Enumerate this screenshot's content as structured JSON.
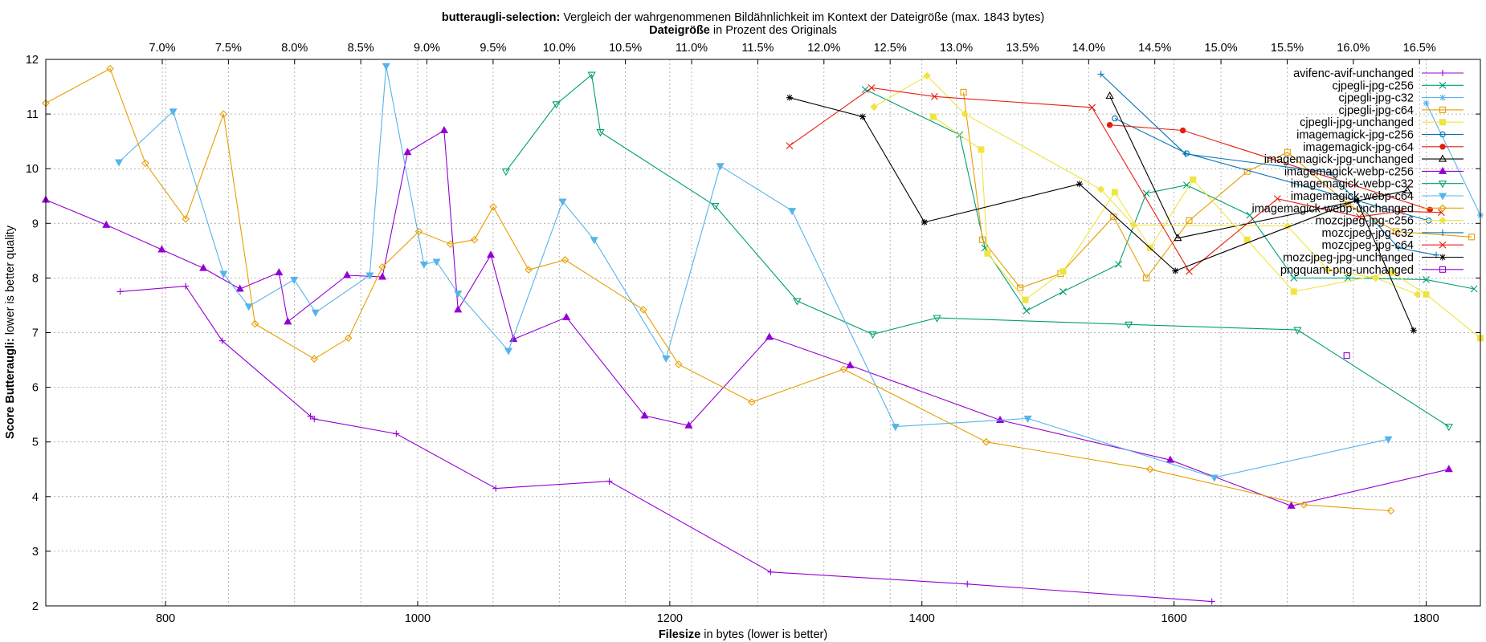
{
  "chart_data": {
    "type": "line",
    "title_bold": "butteraugli-selection:",
    "title_rest": "Vergleich der wahrgenommenen Bildähnlichkeit im Kontext der Dateigröße (max. 1843 bytes)",
    "x2label_bold": "Dateigröße",
    "x2label_rest": "in Prozent des Originals",
    "xlabel_bold": "Filesize",
    "xlabel_rest": "in bytes (lower is better)",
    "ylabel_bold": "Score Butteraugli:",
    "ylabel_rest": "lower is better quality",
    "xlim": [
      705,
      1843
    ],
    "ylim": [
      2,
      12
    ],
    "x2lim": [
      6.12,
      16.96
    ],
    "xticks": [
      800,
      1000,
      1200,
      1400,
      1600,
      1800
    ],
    "yticks": [
      2,
      3,
      4,
      5,
      6,
      7,
      8,
      9,
      10,
      11,
      12
    ],
    "x2ticks": [
      "7.0%",
      "7.5%",
      "8.0%",
      "8.5%",
      "9.0%",
      "9.5%",
      "10.0%",
      "10.5%",
      "11.0%",
      "11.5%",
      "12.0%",
      "12.5%",
      "13.0%",
      "13.5%",
      "14.0%",
      "14.5%",
      "15.0%",
      "15.5%",
      "16.0%",
      "16.5%"
    ],
    "x2tick_values": [
      7.0,
      7.5,
      8.0,
      8.5,
      9.0,
      9.5,
      10.0,
      10.5,
      11.0,
      11.5,
      12.0,
      12.5,
      13.0,
      13.5,
      14.0,
      14.5,
      15.0,
      15.5,
      16.0,
      16.5
    ],
    "grid": true,
    "legend_position": "top-right",
    "series": [
      {
        "name": "avifenc-avif-unchanged",
        "color": "#9400d3",
        "marker": "plus",
        "points": [
          [
            764,
            7.75
          ],
          [
            816,
            7.85
          ],
          [
            845,
            6.85
          ],
          [
            915,
            5.47
          ],
          [
            918,
            5.42
          ],
          [
            983,
            5.15
          ],
          [
            1062,
            4.15
          ],
          [
            1152,
            4.28
          ],
          [
            1280,
            2.62
          ],
          [
            1436,
            2.4
          ],
          [
            1630,
            2.08
          ]
        ]
      },
      {
        "name": "cjpegli-jpg-c256",
        "color": "#009e73",
        "marker": "x",
        "points": [
          [
            1355,
            11.45
          ],
          [
            1430,
            10.62
          ],
          [
            1450,
            8.55
          ],
          [
            1483,
            7.4
          ],
          [
            1512,
            7.75
          ],
          [
            1556,
            8.25
          ],
          [
            1578,
            9.55
          ],
          [
            1610,
            9.7
          ],
          [
            1660,
            9.15
          ],
          [
            1695,
            8.0
          ],
          [
            1738,
            8.0
          ],
          [
            1800,
            7.97
          ],
          [
            1838,
            7.8
          ]
        ]
      },
      {
        "name": "cjpegli-jpg-c32",
        "color": "#56b4e9",
        "marker": "star",
        "points": [
          [
            1800,
            11.2
          ],
          [
            1843,
            9.15
          ]
        ]
      },
      {
        "name": "cjpegli-jpg-c64",
        "color": "#e69f00",
        "marker": "square",
        "points": [
          [
            1433,
            11.4
          ],
          [
            1448,
            8.7
          ],
          [
            1478,
            7.82
          ],
          [
            1510,
            8.08
          ],
          [
            1552,
            9.12
          ],
          [
            1578,
            8.0
          ],
          [
            1612,
            9.05
          ],
          [
            1658,
            9.95
          ],
          [
            1690,
            10.3
          ],
          [
            1738,
            9.35
          ],
          [
            1776,
            8.85
          ],
          [
            1836,
            8.75
          ]
        ]
      },
      {
        "name": "cjpegli-jpg-unchanged",
        "color": "#f0e442",
        "marker": "fsquare",
        "points": [
          [
            1409,
            10.95
          ],
          [
            1447,
            10.35
          ],
          [
            1452,
            8.45
          ],
          [
            1482,
            7.6
          ],
          [
            1512,
            8.12
          ],
          [
            1553,
            9.57
          ],
          [
            1581,
            8.55
          ],
          [
            1615,
            9.8
          ],
          [
            1658,
            8.7
          ],
          [
            1695,
            7.75
          ],
          [
            1773,
            8.1
          ],
          [
            1800,
            7.7
          ],
          [
            1843,
            6.9
          ]
        ]
      },
      {
        "name": "imagemagick-jpg-c256",
        "color": "#0072b2",
        "marker": "circle",
        "points": [
          [
            1553,
            10.92
          ],
          [
            1610,
            10.28
          ],
          [
            1802,
            9.05
          ]
        ]
      },
      {
        "name": "imagemagick-jpg-c64",
        "color": "#e51e10",
        "marker": "fcircle",
        "points": [
          [
            1549,
            10.8
          ],
          [
            1607,
            10.7
          ],
          [
            1803,
            9.25
          ]
        ]
      },
      {
        "name": "imagemagick-jpg-unchanged",
        "color": "#000000",
        "marker": "triangle",
        "points": [
          [
            1549,
            11.33
          ],
          [
            1603,
            8.73
          ],
          [
            1785,
            9.6
          ]
        ]
      },
      {
        "name": "imagemagick-webp-c256",
        "color": "#9400d3",
        "marker": "ftriangle",
        "points": [
          [
            705,
            9.43
          ],
          [
            753,
            8.97
          ],
          [
            797,
            8.52
          ],
          [
            830,
            8.18
          ],
          [
            859,
            7.8
          ],
          [
            890,
            8.1
          ],
          [
            897,
            7.2
          ],
          [
            944,
            8.05
          ],
          [
            972,
            8.02
          ],
          [
            992,
            10.3
          ],
          [
            1021,
            10.7
          ],
          [
            1032,
            7.42
          ],
          [
            1058,
            8.42
          ],
          [
            1076,
            6.88
          ],
          [
            1118,
            7.28
          ],
          [
            1180,
            5.48
          ],
          [
            1215,
            5.3
          ],
          [
            1279,
            6.92
          ],
          [
            1343,
            6.4
          ],
          [
            1462,
            5.4
          ],
          [
            1597,
            4.67
          ],
          [
            1693,
            3.83
          ],
          [
            1818,
            4.5
          ]
        ]
      },
      {
        "name": "imagemagick-webp-c32",
        "color": "#009e73",
        "marker": "itriangle",
        "points": [
          [
            1070,
            9.95
          ],
          [
            1110,
            11.18
          ],
          [
            1138,
            11.72
          ],
          [
            1145,
            10.67
          ],
          [
            1236,
            9.32
          ],
          [
            1301,
            7.58
          ],
          [
            1361,
            6.97
          ],
          [
            1412,
            7.27
          ],
          [
            1564,
            7.15
          ],
          [
            1698,
            7.05
          ],
          [
            1818,
            5.28
          ]
        ]
      },
      {
        "name": "imagemagick-webp-c64",
        "color": "#56b4e9",
        "marker": "fitriangle",
        "points": [
          [
            763,
            10.12
          ],
          [
            806,
            11.05
          ],
          [
            846,
            8.08
          ],
          [
            866,
            7.48
          ],
          [
            902,
            7.97
          ],
          [
            919,
            7.37
          ],
          [
            962,
            8.05
          ],
          [
            975,
            11.88
          ],
          [
            1005,
            8.25
          ],
          [
            1015,
            8.3
          ],
          [
            1032,
            7.72
          ],
          [
            1072,
            6.67
          ],
          [
            1115,
            9.4
          ],
          [
            1140,
            8.7
          ],
          [
            1197,
            6.53
          ],
          [
            1240,
            10.05
          ],
          [
            1297,
            9.23
          ],
          [
            1379,
            5.28
          ],
          [
            1484,
            5.43
          ],
          [
            1632,
            4.35
          ],
          [
            1770,
            5.05
          ]
        ]
      },
      {
        "name": "imagemagick-webp-unchanged",
        "color": "#e69f00",
        "marker": "diamond",
        "points": [
          [
            705,
            11.2
          ],
          [
            756,
            11.83
          ],
          [
            784,
            10.1
          ],
          [
            816,
            9.08
          ],
          [
            846,
            11.0
          ],
          [
            871,
            7.16
          ],
          [
            918,
            6.52
          ],
          [
            945,
            6.9
          ],
          [
            972,
            8.2
          ],
          [
            1001,
            8.85
          ],
          [
            1026,
            8.62
          ],
          [
            1045,
            8.7
          ],
          [
            1060,
            9.3
          ],
          [
            1088,
            8.15
          ],
          [
            1117,
            8.33
          ],
          [
            1179,
            7.42
          ],
          [
            1207,
            6.42
          ],
          [
            1265,
            5.73
          ],
          [
            1338,
            6.33
          ],
          [
            1451,
            5.0
          ],
          [
            1581,
            4.5
          ],
          [
            1703,
            3.85
          ],
          [
            1772,
            3.74
          ]
        ]
      },
      {
        "name": "mozcjpeg-jpg-c256",
        "color": "#f0e442",
        "marker": "fdiamond",
        "points": [
          [
            1362,
            11.13
          ],
          [
            1404,
            11.7
          ],
          [
            1434,
            11.0
          ],
          [
            1542,
            9.62
          ],
          [
            1568,
            8.97
          ],
          [
            1690,
            8.95
          ],
          [
            1722,
            8.15
          ],
          [
            1760,
            8.0
          ],
          [
            1793,
            7.7
          ]
        ]
      },
      {
        "name": "mozcjpeg-jpg-c32",
        "color": "#0072b2",
        "marker": "plus",
        "points": [
          [
            1542,
            11.73
          ],
          [
            1609,
            10.27
          ],
          [
            1724,
            9.93
          ],
          [
            1778,
            8.55
          ],
          [
            1808,
            8.42
          ]
        ]
      },
      {
        "name": "mozcjpeg-jpg-c64",
        "color": "#e51e10",
        "marker": "x",
        "points": [
          [
            1295,
            10.42
          ],
          [
            1360,
            11.48
          ],
          [
            1410,
            11.32
          ],
          [
            1535,
            11.12
          ],
          [
            1612,
            8.12
          ],
          [
            1682,
            9.45
          ],
          [
            1747,
            9.12
          ],
          [
            1780,
            9.22
          ],
          [
            1812,
            9.2
          ]
        ]
      },
      {
        "name": "mozcjpeg-jpg-unchanged",
        "color": "#000000",
        "marker": "star",
        "points": [
          [
            1295,
            11.3
          ],
          [
            1353,
            10.95
          ],
          [
            1402,
            9.02
          ],
          [
            1525,
            9.72
          ],
          [
            1601,
            8.13
          ],
          [
            1745,
            9.42
          ],
          [
            1790,
            7.04
          ]
        ]
      },
      {
        "name": "pngquant-png-unchanged",
        "color": "#9400d3",
        "marker": "square",
        "points": [
          [
            1737,
            6.58
          ]
        ]
      }
    ]
  }
}
